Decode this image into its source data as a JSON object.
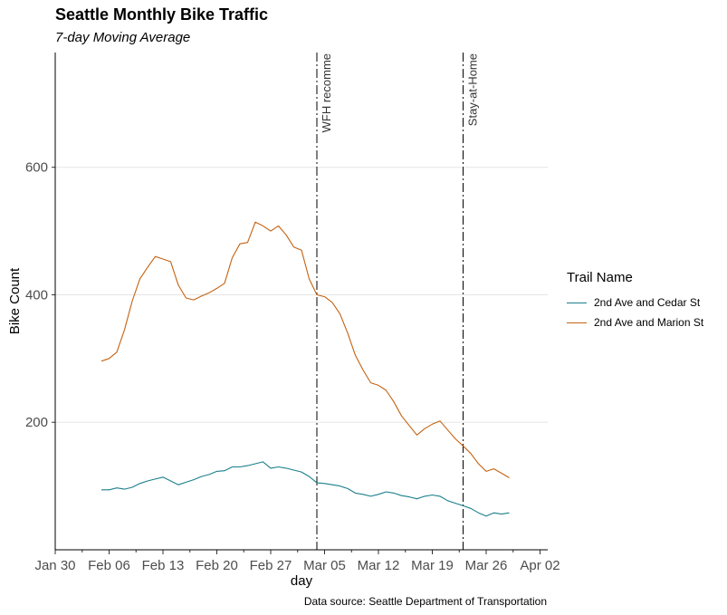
{
  "chart_data": {
    "type": "line",
    "title": "Seattle Monthly Bike Traffic",
    "subtitle": "7-day Moving Average",
    "xlabel": "day",
    "ylabel": "Bike Count",
    "caption": "Data source: Seattle Department of Transportation",
    "x_range": [
      "2020-01-30",
      "2020-04-03"
    ],
    "ylim": [
      0,
      780
    ],
    "x_ticks": [
      {
        "date": "2020-01-30",
        "label": "Jan 30"
      },
      {
        "date": "2020-02-06",
        "label": "Feb 06"
      },
      {
        "date": "2020-02-13",
        "label": "Feb 13"
      },
      {
        "date": "2020-02-20",
        "label": "Feb 20"
      },
      {
        "date": "2020-02-27",
        "label": "Feb 27"
      },
      {
        "date": "2020-03-05",
        "label": "Mar 05"
      },
      {
        "date": "2020-03-12",
        "label": "Mar 12"
      },
      {
        "date": "2020-03-19",
        "label": "Mar 19"
      },
      {
        "date": "2020-03-26",
        "label": "Mar 26"
      },
      {
        "date": "2020-04-02",
        "label": "Apr 02"
      }
    ],
    "y_ticks": [
      200,
      400,
      600
    ],
    "grid": {
      "horizontal_major": true,
      "vertical": false
    },
    "legend": {
      "title": "Trail Name",
      "placement": "right"
    },
    "annotations": [
      {
        "date": "2020-03-04",
        "label": "WFH recomme"
      },
      {
        "date": "2020-03-23",
        "label": "Stay-at-Home"
      }
    ],
    "x": [
      "2020-02-05",
      "2020-02-06",
      "2020-02-07",
      "2020-02-08",
      "2020-02-09",
      "2020-02-10",
      "2020-02-11",
      "2020-02-12",
      "2020-02-13",
      "2020-02-14",
      "2020-02-15",
      "2020-02-16",
      "2020-02-17",
      "2020-02-18",
      "2020-02-19",
      "2020-02-20",
      "2020-02-21",
      "2020-02-22",
      "2020-02-23",
      "2020-02-24",
      "2020-02-25",
      "2020-02-26",
      "2020-02-27",
      "2020-02-28",
      "2020-02-29",
      "2020-03-01",
      "2020-03-02",
      "2020-03-03",
      "2020-03-04",
      "2020-03-05",
      "2020-03-06",
      "2020-03-07",
      "2020-03-08",
      "2020-03-09",
      "2020-03-10",
      "2020-03-11",
      "2020-03-12",
      "2020-03-13",
      "2020-03-14",
      "2020-03-15",
      "2020-03-16",
      "2020-03-17",
      "2020-03-18",
      "2020-03-19",
      "2020-03-20",
      "2020-03-21",
      "2020-03-22",
      "2020-03-23",
      "2020-03-24",
      "2020-03-25",
      "2020-03-26",
      "2020-03-27",
      "2020-03-28",
      "2020-03-29"
    ],
    "series": [
      {
        "name": "2nd Ave and Cedar St",
        "color": "#1b7f8c",
        "values": [
          94,
          94,
          97,
          95,
          98,
          104,
          108,
          111,
          114,
          108,
          102,
          106,
          110,
          115,
          118,
          123,
          124,
          130,
          130,
          132,
          135,
          138,
          128,
          130,
          128,
          125,
          122,
          115,
          105,
          104,
          102,
          100,
          96,
          89,
          87,
          84,
          87,
          91,
          89,
          85,
          83,
          80,
          84,
          86,
          84,
          77,
          73,
          69,
          65,
          58,
          53,
          58,
          56,
          58
        ]
      },
      {
        "name": "2nd Ave and Marion St",
        "color": "#c46210",
        "values": [
          296,
          300,
          310,
          345,
          390,
          425,
          443,
          460,
          456,
          452,
          415,
          395,
          392,
          398,
          403,
          410,
          418,
          458,
          480,
          482,
          514,
          508,
          500,
          508,
          494,
          475,
          470,
          425,
          400,
          397,
          388,
          370,
          340,
          305,
          282,
          262,
          258,
          250,
          232,
          210,
          195,
          180,
          190,
          197,
          202,
          188,
          174,
          163,
          151,
          135,
          123,
          127,
          120,
          113
        ]
      }
    ]
  }
}
